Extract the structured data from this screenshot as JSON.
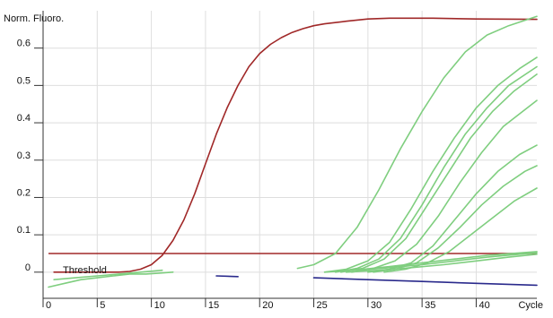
{
  "chart_data": {
    "type": "line",
    "title": "",
    "ylabel": "Norm. Fluoro.",
    "xlabel": "Cycle",
    "xlim": [
      0,
      45.6
    ],
    "ylim": [
      -0.07,
      0.7
    ],
    "x_ticks": [
      0,
      5,
      10,
      15,
      20,
      25,
      30,
      35,
      40
    ],
    "x_tick_labels": [
      "0",
      "5",
      "10",
      "15",
      "20",
      "25",
      "30",
      "35",
      "40"
    ],
    "y_ticks": [
      0,
      0.1,
      0.2,
      0.3,
      0.4,
      0.5,
      0.6
    ],
    "y_tick_labels": [
      "0",
      "0.1",
      "0.2",
      "0.3",
      "0.4",
      "0.5",
      "0.6"
    ],
    "grid": true,
    "legend": "none",
    "threshold": {
      "label": "Threshold",
      "value": 0.05,
      "color": "#a02828"
    },
    "colors": {
      "grid": "#dedede",
      "axis": "#333333",
      "green": "#7fce7f",
      "red": "#a02828",
      "blue": "#2a2a8c"
    },
    "series": [
      {
        "color": "#a02828",
        "points": [
          [
            1,
            0.0
          ],
          [
            4,
            0.0
          ],
          [
            7,
            0.0
          ],
          [
            8,
            0.002
          ],
          [
            9,
            0.008
          ],
          [
            10,
            0.02
          ],
          [
            11,
            0.045
          ],
          [
            12,
            0.085
          ],
          [
            13,
            0.14
          ],
          [
            14,
            0.21
          ],
          [
            15,
            0.29
          ],
          [
            16,
            0.37
          ],
          [
            17,
            0.44
          ],
          [
            18,
            0.5
          ],
          [
            19,
            0.55
          ],
          [
            20,
            0.585
          ],
          [
            21,
            0.61
          ],
          [
            22,
            0.628
          ],
          [
            23,
            0.642
          ],
          [
            24,
            0.652
          ],
          [
            25,
            0.66
          ],
          [
            26,
            0.665
          ],
          [
            28,
            0.672
          ],
          [
            30,
            0.678
          ],
          [
            32,
            0.68
          ],
          [
            36,
            0.68
          ],
          [
            40,
            0.678
          ],
          [
            45.6,
            0.677
          ]
        ]
      },
      {
        "color": "#7fce7f",
        "points": [
          [
            23.5,
            0.01
          ],
          [
            25,
            0.02
          ],
          [
            27,
            0.05
          ],
          [
            29,
            0.12
          ],
          [
            31,
            0.22
          ],
          [
            33,
            0.33
          ],
          [
            35,
            0.43
          ],
          [
            37,
            0.52
          ],
          [
            39,
            0.59
          ],
          [
            41,
            0.635
          ],
          [
            43,
            0.66
          ],
          [
            45.6,
            0.685
          ]
        ]
      },
      {
        "color": "#7fce7f",
        "points": [
          [
            26,
            0.0
          ],
          [
            28,
            0.008
          ],
          [
            30,
            0.03
          ],
          [
            32,
            0.08
          ],
          [
            34,
            0.17
          ],
          [
            36,
            0.27
          ],
          [
            38,
            0.36
          ],
          [
            40,
            0.44
          ],
          [
            42,
            0.5
          ],
          [
            44,
            0.545
          ],
          [
            45.6,
            0.575
          ]
        ]
      },
      {
        "color": "#7fce7f",
        "points": [
          [
            27,
            0.0
          ],
          [
            29,
            0.01
          ],
          [
            31,
            0.035
          ],
          [
            33,
            0.09
          ],
          [
            35,
            0.18
          ],
          [
            37,
            0.28
          ],
          [
            39,
            0.37
          ],
          [
            41,
            0.44
          ],
          [
            43,
            0.5
          ],
          [
            45.6,
            0.55
          ]
        ]
      },
      {
        "color": "#7fce7f",
        "points": [
          [
            27.5,
            0.0
          ],
          [
            29.5,
            0.01
          ],
          [
            31.5,
            0.035
          ],
          [
            33.5,
            0.09
          ],
          [
            35.5,
            0.18
          ],
          [
            37.5,
            0.27
          ],
          [
            39.5,
            0.36
          ],
          [
            41.5,
            0.43
          ],
          [
            43.5,
            0.485
          ],
          [
            45.6,
            0.53
          ]
        ]
      },
      {
        "color": "#7fce7f",
        "points": [
          [
            28.5,
            0.0
          ],
          [
            30.5,
            0.01
          ],
          [
            32.5,
            0.03
          ],
          [
            34.5,
            0.075
          ],
          [
            36.5,
            0.15
          ],
          [
            38.5,
            0.24
          ],
          [
            40.5,
            0.32
          ],
          [
            42.5,
            0.39
          ],
          [
            45.6,
            0.46
          ]
        ]
      },
      {
        "color": "#7fce7f",
        "points": [
          [
            30,
            0.0
          ],
          [
            32,
            0.008
          ],
          [
            34,
            0.025
          ],
          [
            36,
            0.07
          ],
          [
            38,
            0.14
          ],
          [
            40,
            0.21
          ],
          [
            42,
            0.27
          ],
          [
            44,
            0.315
          ],
          [
            45.6,
            0.34
          ]
        ]
      },
      {
        "color": "#7fce7f",
        "points": [
          [
            30.5,
            0.0
          ],
          [
            32.5,
            0.008
          ],
          [
            34.5,
            0.025
          ],
          [
            36.5,
            0.065
          ],
          [
            38.5,
            0.12
          ],
          [
            40.5,
            0.18
          ],
          [
            42.5,
            0.23
          ],
          [
            44.5,
            0.27
          ],
          [
            45.6,
            0.285
          ]
        ]
      },
      {
        "color": "#7fce7f",
        "points": [
          [
            31.5,
            0.0
          ],
          [
            33.5,
            0.008
          ],
          [
            35.5,
            0.025
          ],
          [
            37.5,
            0.055
          ],
          [
            39.5,
            0.1
          ],
          [
            41.5,
            0.145
          ],
          [
            43.5,
            0.19
          ],
          [
            45.6,
            0.225
          ]
        ]
      },
      {
        "color": "#7fce7f",
        "points": [
          [
            28,
            0.0
          ],
          [
            31,
            0.005
          ],
          [
            34,
            0.012
          ],
          [
            37,
            0.02
          ],
          [
            40,
            0.03
          ],
          [
            43,
            0.04
          ],
          [
            45.6,
            0.048
          ]
        ]
      },
      {
        "color": "#7fce7f",
        "points": [
          [
            29,
            0.005
          ],
          [
            32,
            0.012
          ],
          [
            35,
            0.02
          ],
          [
            38,
            0.03
          ],
          [
            41,
            0.04
          ],
          [
            44,
            0.048
          ],
          [
            45.6,
            0.052
          ]
        ]
      },
      {
        "color": "#7fce7f",
        "points": [
          [
            26,
            0.0
          ],
          [
            29,
            0.006
          ],
          [
            32,
            0.015
          ],
          [
            35,
            0.025
          ],
          [
            38,
            0.035
          ],
          [
            41,
            0.045
          ],
          [
            45.6,
            0.055
          ]
        ]
      },
      {
        "color": "#7fce7f",
        "points": [
          [
            0.5,
            -0.04
          ],
          [
            2,
            -0.03
          ],
          [
            3.5,
            -0.02
          ],
          [
            5,
            -0.015
          ],
          [
            6.5,
            -0.01
          ],
          [
            8,
            -0.005
          ],
          [
            9.5,
            -0.005
          ],
          [
            11,
            -0.002
          ],
          [
            12,
            0.0
          ]
        ]
      },
      {
        "color": "#7fce7f",
        "points": [
          [
            1,
            -0.02
          ],
          [
            3,
            -0.015
          ],
          [
            5,
            -0.01
          ],
          [
            7,
            -0.005
          ],
          [
            9,
            0.0
          ],
          [
            11,
            0.005
          ]
        ]
      },
      {
        "color": "#2a2a8c",
        "points": [
          [
            25,
            -0.015
          ],
          [
            30,
            -0.02
          ],
          [
            35,
            -0.025
          ],
          [
            40,
            -0.03
          ],
          [
            45.6,
            -0.035
          ]
        ]
      },
      {
        "color": "#2a2a8c",
        "points": [
          [
            16,
            -0.01
          ],
          [
            18,
            -0.012
          ]
        ]
      }
    ]
  }
}
